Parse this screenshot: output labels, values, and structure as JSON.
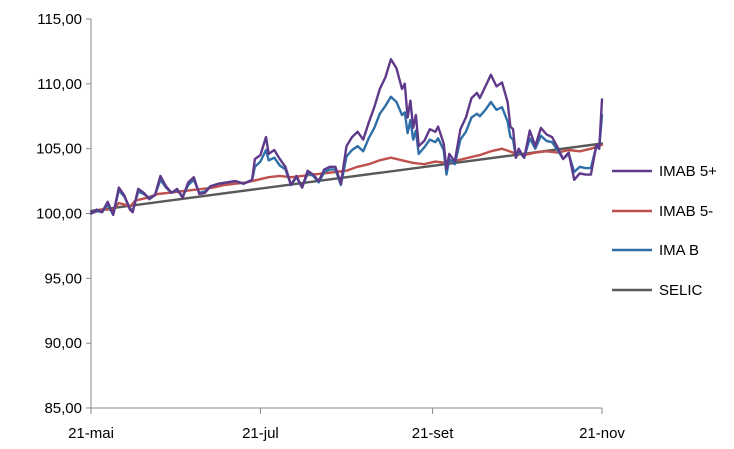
{
  "chart_data": {
    "type": "line",
    "title": "",
    "xlabel": "",
    "ylabel": "",
    "ylim": [
      85,
      115
    ],
    "yticks": [
      "85,00",
      "90,00",
      "95,00",
      "100,00",
      "105,00",
      "110,00",
      "115,00"
    ],
    "xticks": [
      "21-mai",
      "21-jul",
      "21-set",
      "21-nov"
    ],
    "x_range_days": [
      0,
      184
    ],
    "x_tick_days": [
      0,
      61,
      123,
      184
    ],
    "grid": false,
    "legend_position": "right",
    "series": [
      {
        "name": "IMAB 5+",
        "color": "#5f3a8a",
        "points": [
          [
            0,
            100.0
          ],
          [
            2,
            100.3
          ],
          [
            4,
            100.1
          ],
          [
            6,
            100.9
          ],
          [
            8,
            99.9
          ],
          [
            10,
            102.0
          ],
          [
            12,
            101.4
          ],
          [
            14,
            100.3
          ],
          [
            15,
            100.1
          ],
          [
            17,
            101.9
          ],
          [
            19,
            101.6
          ],
          [
            21,
            101.1
          ],
          [
            23,
            101.4
          ],
          [
            25,
            102.9
          ],
          [
            27,
            102.1
          ],
          [
            29,
            101.6
          ],
          [
            31,
            101.9
          ],
          [
            33,
            101.2
          ],
          [
            35,
            102.4
          ],
          [
            37,
            102.8
          ],
          [
            39,
            101.5
          ],
          [
            41,
            101.6
          ],
          [
            43,
            102.1
          ],
          [
            46,
            102.3
          ],
          [
            49,
            102.4
          ],
          [
            52,
            102.5
          ],
          [
            55,
            102.3
          ],
          [
            58,
            102.6
          ],
          [
            59,
            104.2
          ],
          [
            61,
            104.5
          ],
          [
            63,
            105.9
          ],
          [
            64,
            104.6
          ],
          [
            66,
            104.9
          ],
          [
            68,
            104.2
          ],
          [
            70,
            103.6
          ],
          [
            72,
            102.2
          ],
          [
            74,
            102.9
          ],
          [
            76,
            102.0
          ],
          [
            78,
            103.3
          ],
          [
            80,
            103.0
          ],
          [
            82,
            102.5
          ],
          [
            84,
            103.4
          ],
          [
            86,
            103.6
          ],
          [
            88,
            103.6
          ],
          [
            90,
            102.3
          ],
          [
            92,
            105.2
          ],
          [
            94,
            105.9
          ],
          [
            96,
            106.3
          ],
          [
            98,
            105.7
          ],
          [
            100,
            107.0
          ],
          [
            102,
            108.2
          ],
          [
            104,
            109.6
          ],
          [
            106,
            110.5
          ],
          [
            108,
            111.9
          ],
          [
            110,
            111.2
          ],
          [
            112,
            109.6
          ],
          [
            113,
            110.0
          ],
          [
            114,
            107.4
          ],
          [
            115,
            108.7
          ],
          [
            116,
            106.6
          ],
          [
            117,
            107.6
          ],
          [
            118,
            105.2
          ],
          [
            120,
            105.6
          ],
          [
            122,
            106.5
          ],
          [
            124,
            106.3
          ],
          [
            125,
            106.7
          ],
          [
            127,
            105.4
          ],
          [
            128,
            103.4
          ],
          [
            129,
            104.6
          ],
          [
            131,
            104.0
          ],
          [
            133,
            106.5
          ],
          [
            135,
            107.4
          ],
          [
            137,
            108.9
          ],
          [
            139,
            109.3
          ],
          [
            140,
            108.9
          ],
          [
            142,
            109.8
          ],
          [
            144,
            110.7
          ],
          [
            146,
            109.8
          ],
          [
            148,
            110.1
          ],
          [
            150,
            108.6
          ],
          [
            151,
            106.7
          ],
          [
            152,
            106.5
          ],
          [
            153,
            104.3
          ],
          [
            154,
            105.0
          ],
          [
            156,
            104.3
          ],
          [
            158,
            106.4
          ],
          [
            160,
            105.2
          ],
          [
            162,
            106.6
          ],
          [
            164,
            106.1
          ],
          [
            166,
            105.9
          ],
          [
            168,
            105.1
          ],
          [
            170,
            104.2
          ],
          [
            172,
            104.7
          ],
          [
            174,
            102.6
          ],
          [
            176,
            103.1
          ],
          [
            178,
            103.0
          ],
          [
            180,
            103.0
          ],
          [
            182,
            105.3
          ],
          [
            183,
            105.0
          ],
          [
            184,
            108.8
          ]
        ]
      },
      {
        "name": "IMAB 5-",
        "color": "#c0504d",
        "points": [
          [
            0,
            100.0
          ],
          [
            4,
            100.3
          ],
          [
            8,
            100.3
          ],
          [
            10,
            100.8
          ],
          [
            12,
            100.7
          ],
          [
            14,
            100.5
          ],
          [
            16,
            101.0
          ],
          [
            20,
            101.2
          ],
          [
            24,
            101.5
          ],
          [
            28,
            101.6
          ],
          [
            32,
            101.7
          ],
          [
            36,
            101.8
          ],
          [
            40,
            101.9
          ],
          [
            44,
            102.0
          ],
          [
            48,
            102.2
          ],
          [
            52,
            102.3
          ],
          [
            56,
            102.4
          ],
          [
            60,
            102.6
          ],
          [
            64,
            102.8
          ],
          [
            68,
            102.9
          ],
          [
            72,
            102.8
          ],
          [
            76,
            102.9
          ],
          [
            80,
            103.0
          ],
          [
            84,
            103.1
          ],
          [
            88,
            103.2
          ],
          [
            92,
            103.3
          ],
          [
            96,
            103.6
          ],
          [
            100,
            103.8
          ],
          [
            104,
            104.1
          ],
          [
            108,
            104.3
          ],
          [
            112,
            104.1
          ],
          [
            116,
            103.9
          ],
          [
            120,
            103.8
          ],
          [
            124,
            104.0
          ],
          [
            128,
            103.9
          ],
          [
            132,
            104.1
          ],
          [
            136,
            104.3
          ],
          [
            140,
            104.5
          ],
          [
            144,
            104.8
          ],
          [
            148,
            105.0
          ],
          [
            152,
            104.7
          ],
          [
            156,
            104.5
          ],
          [
            160,
            104.7
          ],
          [
            164,
            104.8
          ],
          [
            168,
            104.7
          ],
          [
            172,
            104.9
          ],
          [
            176,
            104.8
          ],
          [
            180,
            105.0
          ],
          [
            184,
            105.3
          ]
        ]
      },
      {
        "name": "IMA B",
        "color": "#2f6fa8",
        "points": [
          [
            0,
            100.0
          ],
          [
            2,
            100.2
          ],
          [
            4,
            100.1
          ],
          [
            6,
            100.7
          ],
          [
            8,
            99.9
          ],
          [
            10,
            101.8
          ],
          [
            12,
            101.3
          ],
          [
            14,
            100.4
          ],
          [
            15,
            100.2
          ],
          [
            17,
            101.7
          ],
          [
            19,
            101.5
          ],
          [
            21,
            101.2
          ],
          [
            23,
            101.4
          ],
          [
            25,
            102.6
          ],
          [
            27,
            102.0
          ],
          [
            29,
            101.6
          ],
          [
            31,
            101.8
          ],
          [
            33,
            101.3
          ],
          [
            35,
            102.2
          ],
          [
            37,
            102.6
          ],
          [
            39,
            101.6
          ],
          [
            41,
            101.7
          ],
          [
            43,
            102.1
          ],
          [
            46,
            102.3
          ],
          [
            49,
            102.4
          ],
          [
            52,
            102.5
          ],
          [
            55,
            102.3
          ],
          [
            58,
            102.6
          ],
          [
            59,
            103.6
          ],
          [
            61,
            104.0
          ],
          [
            63,
            104.9
          ],
          [
            64,
            104.1
          ],
          [
            66,
            104.3
          ],
          [
            68,
            103.7
          ],
          [
            70,
            103.4
          ],
          [
            72,
            102.2
          ],
          [
            74,
            102.8
          ],
          [
            76,
            102.0
          ],
          [
            78,
            103.1
          ],
          [
            80,
            102.9
          ],
          [
            82,
            102.4
          ],
          [
            84,
            103.2
          ],
          [
            86,
            103.4
          ],
          [
            88,
            103.4
          ],
          [
            90,
            102.2
          ],
          [
            92,
            104.4
          ],
          [
            94,
            104.9
          ],
          [
            96,
            105.2
          ],
          [
            98,
            104.8
          ],
          [
            100,
            105.8
          ],
          [
            102,
            106.6
          ],
          [
            104,
            107.7
          ],
          [
            106,
            108.3
          ],
          [
            108,
            109.0
          ],
          [
            110,
            108.6
          ],
          [
            112,
            107.6
          ],
          [
            113,
            107.8
          ],
          [
            114,
            106.2
          ],
          [
            115,
            107.2
          ],
          [
            116,
            105.7
          ],
          [
            117,
            106.4
          ],
          [
            118,
            104.6
          ],
          [
            120,
            105.1
          ],
          [
            122,
            105.7
          ],
          [
            124,
            105.5
          ],
          [
            125,
            105.8
          ],
          [
            127,
            104.9
          ],
          [
            128,
            103.0
          ],
          [
            129,
            104.2
          ],
          [
            131,
            103.8
          ],
          [
            133,
            105.7
          ],
          [
            135,
            106.3
          ],
          [
            137,
            107.4
          ],
          [
            139,
            107.7
          ],
          [
            140,
            107.5
          ],
          [
            142,
            108.0
          ],
          [
            144,
            108.6
          ],
          [
            146,
            108.0
          ],
          [
            148,
            108.2
          ],
          [
            150,
            107.1
          ],
          [
            151,
            105.9
          ],
          [
            152,
            105.7
          ],
          [
            153,
            104.3
          ],
          [
            154,
            104.8
          ],
          [
            156,
            104.3
          ],
          [
            158,
            105.8
          ],
          [
            160,
            105.0
          ],
          [
            162,
            106.0
          ],
          [
            164,
            105.6
          ],
          [
            166,
            105.5
          ],
          [
            168,
            104.9
          ],
          [
            170,
            104.2
          ],
          [
            172,
            104.6
          ],
          [
            174,
            103.2
          ],
          [
            176,
            103.6
          ],
          [
            178,
            103.5
          ],
          [
            180,
            103.5
          ],
          [
            182,
            105.2
          ],
          [
            183,
            105.0
          ],
          [
            184,
            107.6
          ]
        ]
      },
      {
        "name": "SELIC",
        "color": "#595959",
        "points": [
          [
            0,
            100.2
          ],
          [
            184,
            105.4
          ]
        ]
      }
    ]
  }
}
